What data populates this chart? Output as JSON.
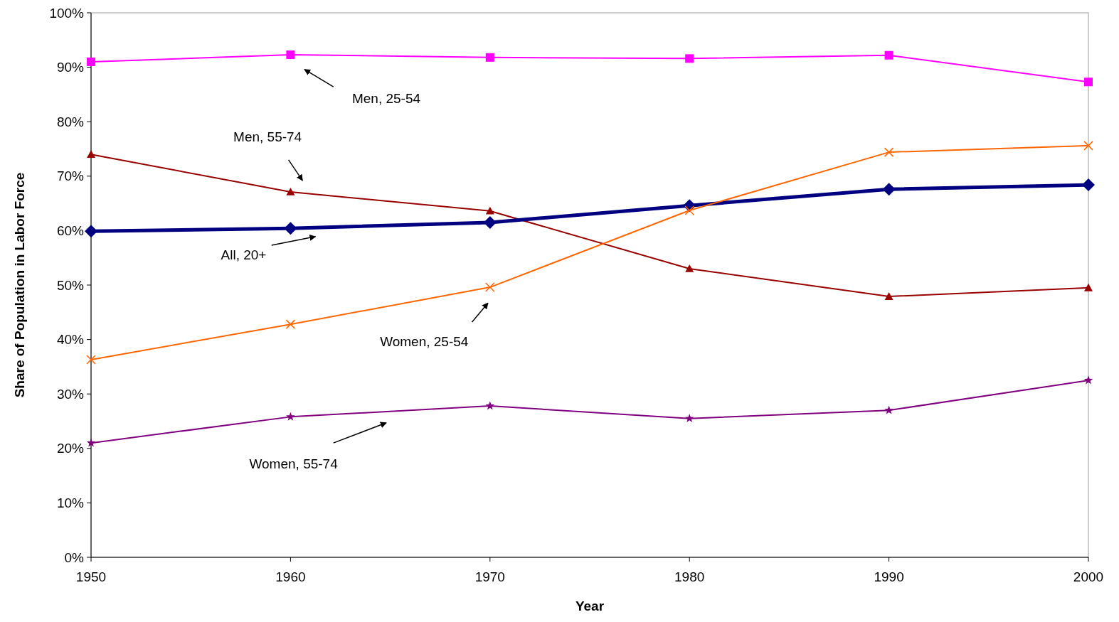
{
  "chart_data": {
    "type": "line",
    "xlabel": "Year",
    "ylabel": "Share of Population in Labor Force",
    "x": [
      1950,
      1960,
      1970,
      1980,
      1990,
      2000
    ],
    "xlim": [
      1950,
      2000
    ],
    "xticks": [
      1950,
      1960,
      1970,
      1980,
      1990,
      2000
    ],
    "ylim": [
      0,
      100
    ],
    "yticks": [
      {
        "value": 0,
        "label": "0%"
      },
      {
        "value": 10,
        "label": "10%"
      },
      {
        "value": 20,
        "label": "20%"
      },
      {
        "value": 30,
        "label": "30%"
      },
      {
        "value": 40,
        "label": "40%"
      },
      {
        "value": 50,
        "label": "50%"
      },
      {
        "value": 60,
        "label": "60%"
      },
      {
        "value": 70,
        "label": "70%"
      },
      {
        "value": 80,
        "label": "80%"
      },
      {
        "value": 90,
        "label": "90%"
      },
      {
        "value": 100,
        "label": "100%"
      }
    ],
    "grid": false,
    "series": [
      {
        "name": "Men, 25-54",
        "color": "#ff00ff",
        "marker": "square",
        "values": [
          91.0,
          92.3,
          91.8,
          91.6,
          92.2,
          87.3
        ]
      },
      {
        "name": "Men, 55-74",
        "color": "#990000",
        "marker": "triangle",
        "values": [
          74.0,
          67.1,
          63.6,
          53.0,
          47.9,
          49.5
        ]
      },
      {
        "name": "All, 20+",
        "color": "#000080",
        "marker": "diamond",
        "values": [
          59.9,
          60.4,
          61.5,
          64.6,
          67.6,
          68.4
        ]
      },
      {
        "name": "Women, 25-54",
        "color": "#ff6600",
        "marker": "cross",
        "values": [
          36.3,
          42.8,
          49.6,
          63.7,
          74.4,
          75.6
        ]
      },
      {
        "name": "Women, 55-74",
        "color": "#800080",
        "marker": "star",
        "values": [
          21.0,
          25.8,
          27.8,
          25.5,
          27.0,
          32.5
        ]
      }
    ]
  }
}
